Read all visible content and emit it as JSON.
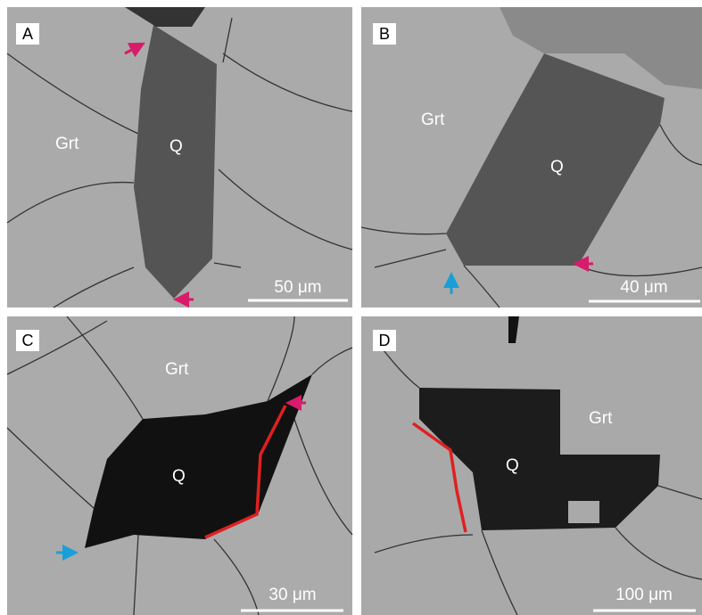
{
  "panels": [
    {
      "label": "A",
      "host": "Grt",
      "inclusion": "Q",
      "scale": "50 μm"
    },
    {
      "label": "B",
      "host": "Grt",
      "inclusion": "Q",
      "scale": "40 μm"
    },
    {
      "label": "C",
      "host": "Grt",
      "inclusion": "Q",
      "scale": "30 μm"
    },
    {
      "label": "D",
      "host": "Grt",
      "inclusion": "Q",
      "scale": "100 μm"
    }
  ]
}
